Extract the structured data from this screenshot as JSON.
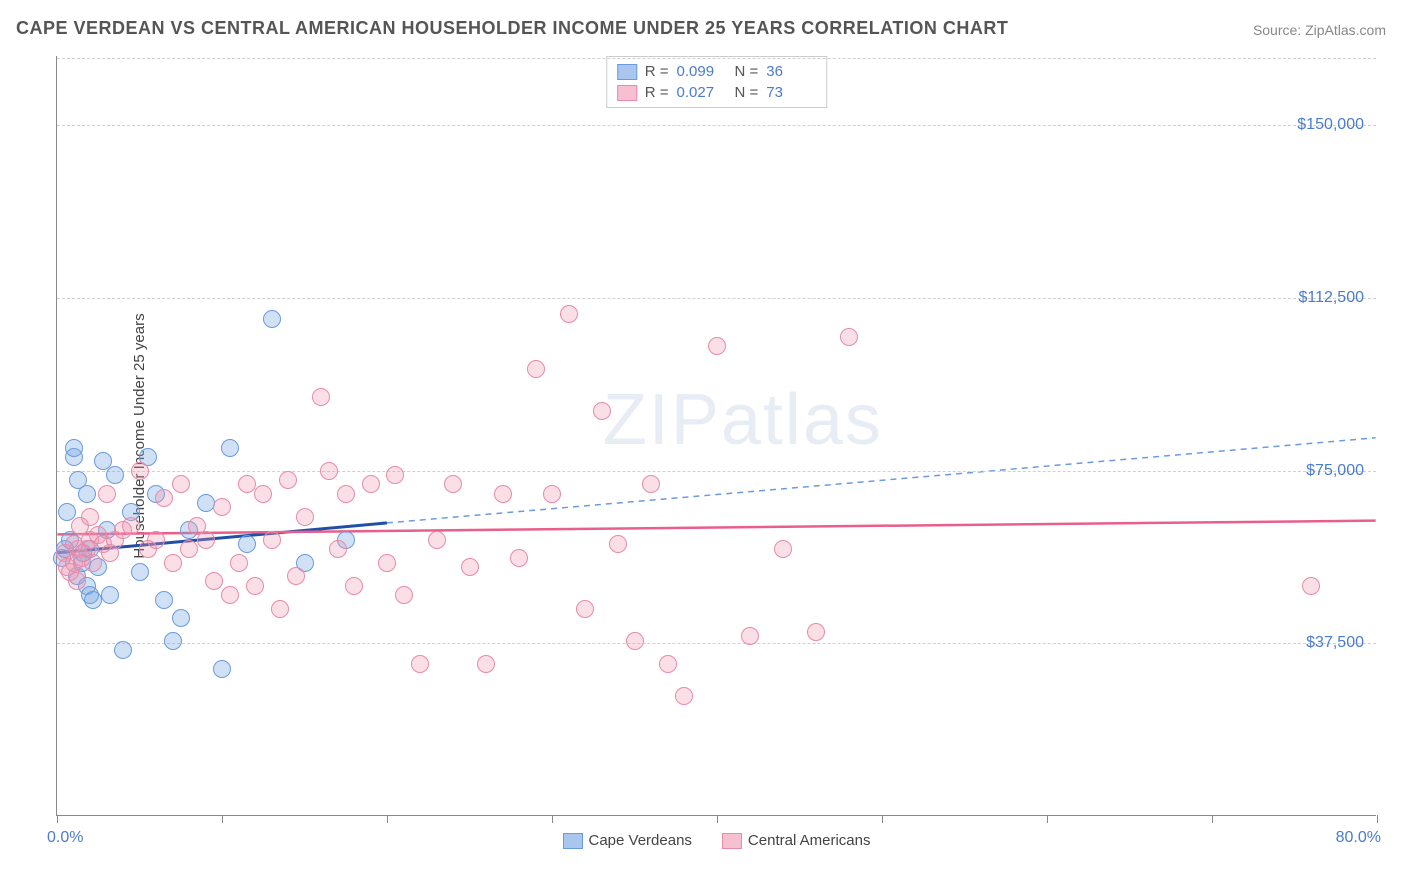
{
  "chart": {
    "type": "scatter",
    "title": "CAPE VERDEAN VS CENTRAL AMERICAN HOUSEHOLDER INCOME UNDER 25 YEARS CORRELATION CHART",
    "source_label": "Source: ZipAtlas.com",
    "watermark": "ZIPatlas",
    "y_axis_title": "Householder Income Under 25 years",
    "background_color": "#ffffff",
    "grid_color": "#d0d0d0",
    "axis_color": "#888888",
    "title_fontsize": 18,
    "title_color": "#555555",
    "label_fontsize": 15,
    "tick_label_color": "#4a7bd0",
    "xlim": [
      0,
      80
    ],
    "ylim": [
      0,
      165000
    ],
    "x_tick_positions": [
      0,
      10,
      20,
      30,
      40,
      50,
      60,
      70,
      80
    ],
    "x_min_label": "0.0%",
    "x_max_label": "80.0%",
    "y_ticks": [
      {
        "value": 37500,
        "label": "$37,500"
      },
      {
        "value": 75000,
        "label": "$75,000"
      },
      {
        "value": 112500,
        "label": "$112,500"
      },
      {
        "value": 150000,
        "label": "$150,000"
      }
    ],
    "marker_radius": 9,
    "marker_stroke_width": 1.5,
    "series": [
      {
        "key": "cape_verdeans",
        "name": "Cape Verdeans",
        "color_fill": "rgba(120,165,225,0.35)",
        "color_stroke": "#6a9be0",
        "swatch_fill": "#a9c6ef",
        "swatch_border": "#6a9be0",
        "r_label": "R =",
        "r_value": "0.099",
        "n_label": "N =",
        "n_value": "36",
        "trend": {
          "solid": {
            "x1": 0,
            "y1": 57000,
            "x2": 20,
            "y2": 63500,
            "color": "#1f4fa8",
            "width": 3
          },
          "dashed": {
            "x1": 20,
            "y1": 63500,
            "x2": 80,
            "y2": 82000,
            "color": "#6a9be0",
            "width": 1.5,
            "dash": "6,5"
          }
        },
        "points": [
          [
            0.3,
            56000
          ],
          [
            0.5,
            58000
          ],
          [
            0.6,
            66000
          ],
          [
            0.8,
            60000
          ],
          [
            1.0,
            78000
          ],
          [
            1.0,
            80000
          ],
          [
            1.2,
            52000
          ],
          [
            1.3,
            73000
          ],
          [
            1.5,
            55000
          ],
          [
            1.6,
            57000
          ],
          [
            1.8,
            70000
          ],
          [
            1.8,
            50000
          ],
          [
            2.0,
            58000
          ],
          [
            2.0,
            48000
          ],
          [
            2.2,
            47000
          ],
          [
            2.5,
            54000
          ],
          [
            2.8,
            77000
          ],
          [
            3.0,
            62000
          ],
          [
            3.2,
            48000
          ],
          [
            3.5,
            74000
          ],
          [
            4.0,
            36000
          ],
          [
            4.5,
            66000
          ],
          [
            5.0,
            53000
          ],
          [
            5.5,
            78000
          ],
          [
            6.0,
            70000
          ],
          [
            6.5,
            47000
          ],
          [
            7.0,
            38000
          ],
          [
            7.5,
            43000
          ],
          [
            8.0,
            62000
          ],
          [
            9.0,
            68000
          ],
          [
            10.0,
            32000
          ],
          [
            10.5,
            80000
          ],
          [
            11.5,
            59000
          ],
          [
            13.0,
            108000
          ],
          [
            15.0,
            55000
          ],
          [
            17.5,
            60000
          ]
        ]
      },
      {
        "key": "central_americans",
        "name": "Central Americans",
        "color_fill": "rgba(240,150,175,0.30)",
        "color_stroke": "#e88aa8",
        "swatch_fill": "#f6c0d0",
        "swatch_border": "#e88aa8",
        "r_label": "R =",
        "r_value": "0.027",
        "n_label": "N =",
        "n_value": "73",
        "trend": {
          "solid": {
            "x1": 0,
            "y1": 61000,
            "x2": 80,
            "y2": 64000,
            "color": "#e85f8a",
            "width": 2.5
          }
        },
        "points": [
          [
            0.5,
            57000
          ],
          [
            0.6,
            54000
          ],
          [
            0.8,
            53000
          ],
          [
            1.0,
            55000
          ],
          [
            1.0,
            59000
          ],
          [
            1.2,
            51000
          ],
          [
            1.3,
            58000
          ],
          [
            1.4,
            63000
          ],
          [
            1.5,
            56000
          ],
          [
            1.8,
            58000
          ],
          [
            2.0,
            60000
          ],
          [
            2.0,
            65000
          ],
          [
            2.2,
            55000
          ],
          [
            2.5,
            61000
          ],
          [
            2.8,
            59000
          ],
          [
            3.0,
            70000
          ],
          [
            3.2,
            57000
          ],
          [
            3.5,
            60000
          ],
          [
            4.0,
            62000
          ],
          [
            4.5,
            63000
          ],
          [
            5.0,
            75000
          ],
          [
            5.5,
            58000
          ],
          [
            6.0,
            60000
          ],
          [
            6.5,
            69000
          ],
          [
            7.0,
            55000
          ],
          [
            7.5,
            72000
          ],
          [
            8.0,
            58000
          ],
          [
            8.5,
            63000
          ],
          [
            9.0,
            60000
          ],
          [
            9.5,
            51000
          ],
          [
            10.0,
            67000
          ],
          [
            10.5,
            48000
          ],
          [
            11.0,
            55000
          ],
          [
            11.5,
            72000
          ],
          [
            12.0,
            50000
          ],
          [
            12.5,
            70000
          ],
          [
            13.0,
            60000
          ],
          [
            13.5,
            45000
          ],
          [
            14.0,
            73000
          ],
          [
            14.5,
            52000
          ],
          [
            15.0,
            65000
          ],
          [
            16.0,
            91000
          ],
          [
            16.5,
            75000
          ],
          [
            17.0,
            58000
          ],
          [
            17.5,
            70000
          ],
          [
            18.0,
            50000
          ],
          [
            19.0,
            72000
          ],
          [
            20.0,
            55000
          ],
          [
            20.5,
            74000
          ],
          [
            21.0,
            48000
          ],
          [
            22.0,
            33000
          ],
          [
            23.0,
            60000
          ],
          [
            24.0,
            72000
          ],
          [
            25.0,
            54000
          ],
          [
            26.0,
            33000
          ],
          [
            27.0,
            70000
          ],
          [
            28.0,
            56000
          ],
          [
            29.0,
            97000
          ],
          [
            30.0,
            70000
          ],
          [
            31.0,
            109000
          ],
          [
            32.0,
            45000
          ],
          [
            33.0,
            88000
          ],
          [
            34.0,
            59000
          ],
          [
            35.0,
            38000
          ],
          [
            36.0,
            72000
          ],
          [
            37.0,
            33000
          ],
          [
            38.0,
            26000
          ],
          [
            40.0,
            102000
          ],
          [
            42.0,
            39000
          ],
          [
            44.0,
            58000
          ],
          [
            46.0,
            40000
          ],
          [
            48.0,
            104000
          ],
          [
            76.0,
            50000
          ]
        ]
      }
    ]
  }
}
